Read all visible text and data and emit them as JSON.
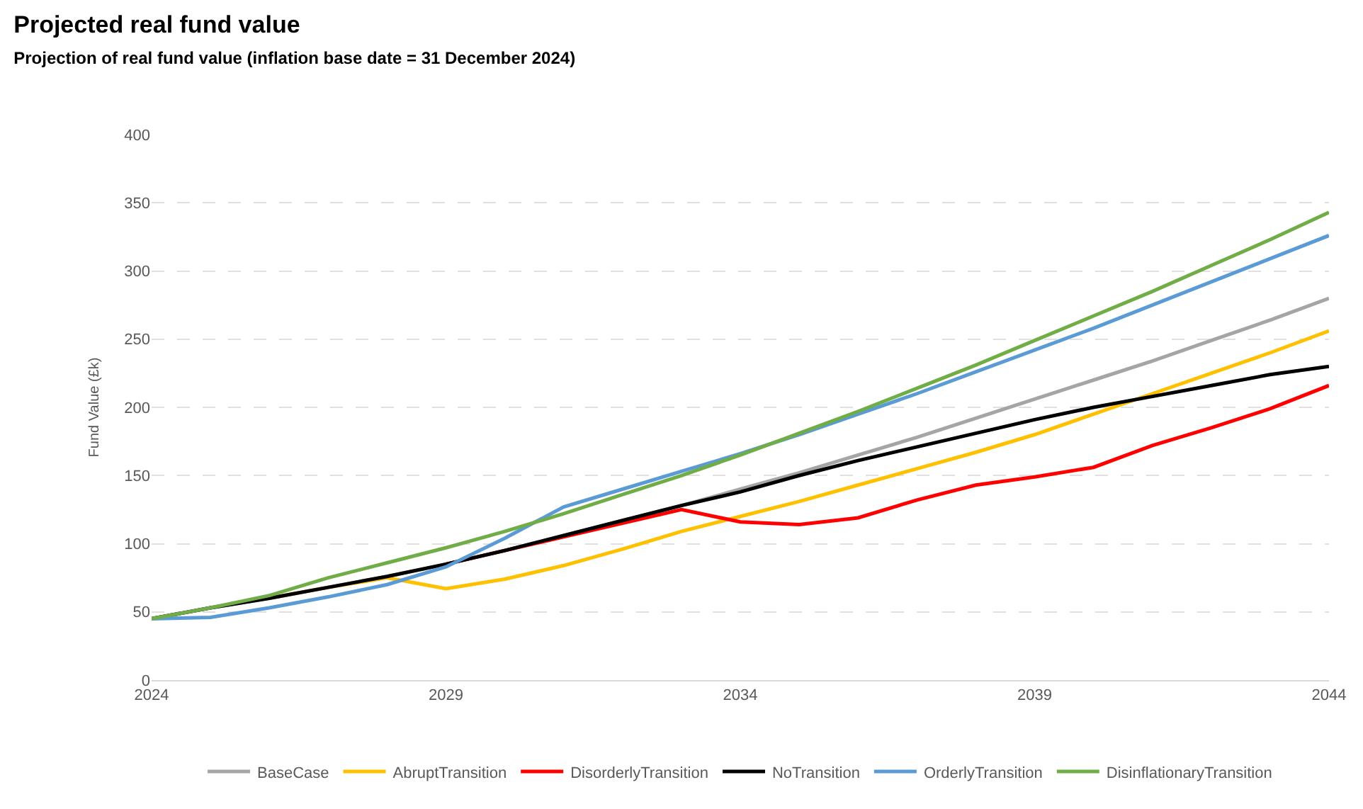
{
  "chart_data": {
    "type": "line",
    "title": "Projected real fund value",
    "subtitle": "Projection of real fund value (inflation base date = 31 December 2024)",
    "ylabel": "Fund Value (£k)",
    "x": [
      2024,
      2025,
      2026,
      2027,
      2028,
      2029,
      2030,
      2031,
      2032,
      2033,
      2034,
      2035,
      2036,
      2037,
      2038,
      2039,
      2040,
      2041,
      2042,
      2043,
      2044
    ],
    "xlim": [
      2024,
      2044
    ],
    "xticks": [
      2024,
      2029,
      2034,
      2039,
      2044
    ],
    "ylim": [
      0,
      400
    ],
    "yticks": [
      0,
      50,
      100,
      150,
      200,
      250,
      300,
      350,
      400
    ],
    "grid": "y",
    "legend": "bottom",
    "marker": "none",
    "line_style": "solid",
    "series": [
      {
        "name": "BaseCase",
        "color": "#a5a5a5",
        "values": [
          45,
          53,
          60,
          68,
          76,
          85,
          95,
          106,
          117,
          128,
          140,
          152,
          165,
          178,
          192,
          206,
          220,
          234,
          249,
          264,
          280
        ]
      },
      {
        "name": "AbruptTransition",
        "color": "#ffc000",
        "values": [
          null,
          null,
          60,
          68,
          75,
          67,
          74,
          84,
          96,
          109,
          120,
          131,
          143,
          155,
          167,
          180,
          195,
          210,
          225,
          240,
          256
        ]
      },
      {
        "name": "DisorderlyTransition",
        "color": "#ff0000",
        "values": [
          null,
          null,
          null,
          null,
          null,
          85,
          95,
          105,
          115,
          125,
          116,
          114,
          119,
          132,
          143,
          149,
          156,
          172,
          185,
          199,
          216
        ]
      },
      {
        "name": "NoTransition",
        "color": "#000000",
        "values": [
          45,
          53,
          60,
          68,
          76,
          85,
          95,
          106,
          117,
          128,
          138,
          150,
          161,
          171,
          181,
          191,
          200,
          208,
          216,
          224,
          230
        ]
      },
      {
        "name": "OrderlyTransition",
        "color": "#5b9bd5",
        "values": [
          45,
          46,
          53,
          61,
          70,
          83,
          104,
          127,
          140,
          153,
          166,
          180,
          195,
          210,
          226,
          242,
          258,
          275,
          292,
          309,
          326
        ]
      },
      {
        "name": "DisinflationaryTransition",
        "color": "#70ad47",
        "values": [
          45,
          53,
          62,
          75,
          86,
          97,
          109,
          122,
          136,
          150,
          165,
          181,
          197,
          214,
          231,
          249,
          267,
          285,
          304,
          323,
          343
        ]
      }
    ]
  }
}
